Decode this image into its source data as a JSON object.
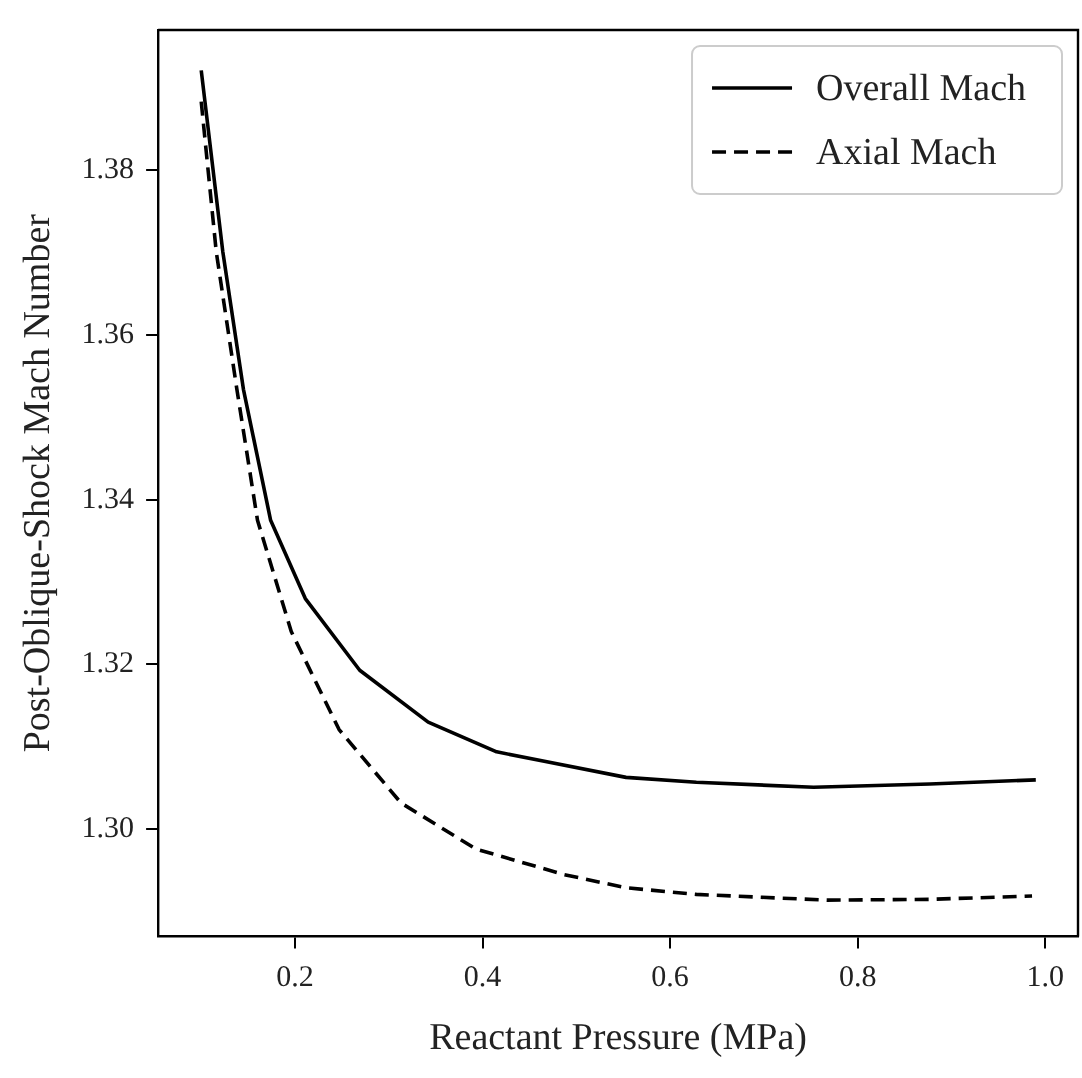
{
  "chart_data": {
    "type": "line",
    "xlabel": "Reactant Pressure (MPa)",
    "ylabel": "Post-Oblique-Shock Mach Number",
    "xlim": [
      0.054,
      1.035
    ],
    "xticks": [
      {
        "value": 0.2,
        "label": "0.2"
      },
      {
        "value": 0.4,
        "label": "0.4"
      },
      {
        "value": 0.6,
        "label": "0.6"
      },
      {
        "value": 0.8,
        "label": "0.8"
      },
      {
        "value": 1.0,
        "label": "1.0"
      }
    ],
    "ylim": [
      1.287,
      1.397
    ],
    "yticks": [
      {
        "value": 1.3,
        "label": "1.30"
      },
      {
        "value": 1.32,
        "label": "1.32"
      },
      {
        "value": 1.34,
        "label": "1.34"
      },
      {
        "value": 1.36,
        "label": "1.36"
      },
      {
        "value": 1.38,
        "label": "1.38"
      }
    ],
    "grid": false,
    "legend": "top right",
    "marker": "none",
    "series": [
      {
        "name": "Overall Mach",
        "color": "#000000",
        "line_style": "solid",
        "x": [
          0.1,
          0.123,
          0.145,
          0.174,
          0.211,
          0.269,
          0.342,
          0.415,
          0.553,
          0.628,
          0.753,
          0.877,
          0.99
        ],
        "values": [
          1.3921,
          1.3701,
          1.3534,
          1.3375,
          1.328,
          1.3193,
          1.313,
          1.3094,
          1.3063,
          1.3057,
          1.3051,
          1.3055,
          1.306
        ]
      },
      {
        "name": "Axial Mach",
        "color": "#000000",
        "line_style": "dashed",
        "x": [
          0.1,
          0.116,
          0.138,
          0.16,
          0.196,
          0.247,
          0.313,
          0.393,
          0.487,
          0.553,
          0.628,
          0.767,
          0.877,
          0.986
        ],
        "values": [
          1.3883,
          1.3701,
          1.3534,
          1.3375,
          1.324,
          1.3121,
          1.3032,
          1.2976,
          1.2945,
          1.2929,
          1.2921,
          1.2914,
          1.2915,
          1.2919
        ]
      }
    ]
  }
}
